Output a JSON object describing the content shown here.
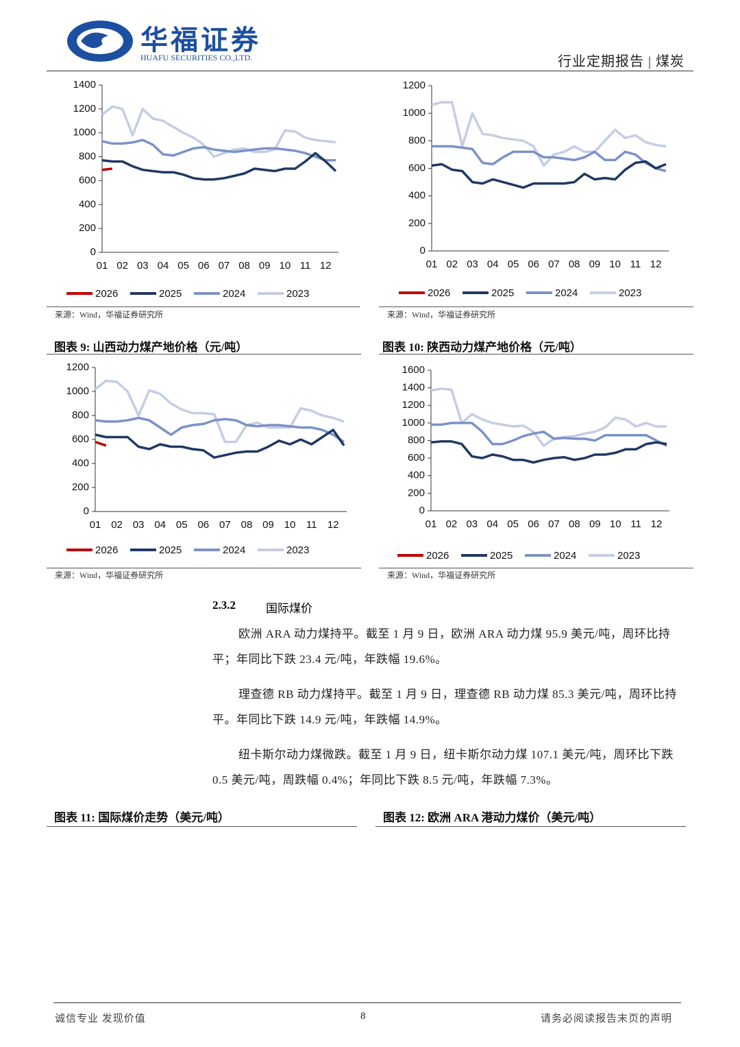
{
  "header": {
    "logo_cn": "华福证券",
    "logo_en": "HUAFU SECURITIES CO.,LTD.",
    "report_type": "行业定期报告 | 煤炭"
  },
  "chart_data": [
    {
      "type": "line",
      "source": "来源：Wind，华福证券研究所",
      "categories": [
        "01",
        null,
        "02",
        null,
        "03",
        null,
        "04",
        null,
        "05",
        null,
        "06",
        null,
        "07",
        null,
        "08",
        null,
        "09",
        null,
        "10",
        null,
        "11",
        null,
        "12",
        null
      ],
      "ylim": [
        0,
        1400
      ],
      "yticks": [
        0,
        200,
        400,
        600,
        800,
        1000,
        1200,
        1400
      ],
      "series": [
        {
          "name": "2026",
          "color": "#c00000",
          "values": [
            690,
            700,
            null,
            null,
            null,
            null,
            null,
            null,
            null,
            null,
            null,
            null,
            null,
            null,
            null,
            null,
            null,
            null,
            null,
            null,
            null,
            null,
            null,
            null
          ]
        },
        {
          "name": "2025",
          "color": "#1f3864",
          "values": [
            770,
            760,
            760,
            720,
            690,
            680,
            670,
            670,
            650,
            620,
            610,
            610,
            620,
            640,
            660,
            700,
            690,
            680,
            700,
            700,
            760,
            830,
            760,
            680
          ]
        },
        {
          "name": "2024",
          "color": "#7a92c8",
          "values": [
            930,
            910,
            910,
            920,
            940,
            900,
            820,
            810,
            840,
            870,
            880,
            860,
            850,
            840,
            850,
            860,
            870,
            870,
            860,
            850,
            830,
            800,
            770,
            770
          ]
        },
        {
          "name": "2023",
          "color": "#c4cce6",
          "values": [
            1150,
            1220,
            1200,
            980,
            1200,
            1120,
            1100,
            1050,
            1000,
            960,
            900,
            800,
            830,
            860,
            870,
            840,
            840,
            860,
            1020,
            1010,
            960,
            940,
            930,
            920
          ]
        }
      ]
    },
    {
      "type": "line",
      "source": "来源：Wind，华福证券研究所",
      "categories": [
        "01",
        null,
        "02",
        null,
        "03",
        null,
        "04",
        null,
        "05",
        null,
        "06",
        null,
        "07",
        null,
        "08",
        null,
        "09",
        null,
        "10",
        null,
        "11",
        null,
        "12",
        null
      ],
      "ylim": [
        0,
        1200
      ],
      "yticks": [
        0,
        200,
        400,
        600,
        800,
        1000,
        1200
      ],
      "series": [
        {
          "name": "2026",
          "color": "#c00000",
          "values": [
            null,
            null,
            null,
            null,
            null,
            null,
            null,
            null,
            null,
            null,
            null,
            null,
            null,
            null,
            null,
            null,
            null,
            null,
            null,
            null,
            null,
            null,
            null,
            null
          ]
        },
        {
          "name": "2025",
          "color": "#1f3864",
          "values": [
            620,
            630,
            590,
            580,
            500,
            490,
            520,
            500,
            480,
            460,
            490,
            490,
            490,
            490,
            500,
            560,
            520,
            530,
            520,
            590,
            640,
            650,
            600,
            630
          ]
        },
        {
          "name": "2024",
          "color": "#7a92c8",
          "values": [
            760,
            760,
            760,
            750,
            740,
            640,
            630,
            680,
            720,
            720,
            720,
            680,
            680,
            670,
            660,
            680,
            720,
            660,
            660,
            720,
            700,
            640,
            600,
            580
          ]
        },
        {
          "name": "2023",
          "color": "#c4cce6",
          "values": [
            1060,
            1080,
            1080,
            760,
            1000,
            850,
            840,
            820,
            810,
            800,
            760,
            620,
            700,
            720,
            760,
            720,
            720,
            800,
            880,
            820,
            840,
            790,
            770,
            760
          ]
        }
      ]
    },
    {
      "type": "line",
      "title": "图表 9:  山西动力煤产地价格（元/吨）",
      "source": "来源：Wind，华福证券研究所",
      "categories": [
        "01",
        null,
        "02",
        null,
        "03",
        null,
        "04",
        null,
        "05",
        null,
        "06",
        null,
        "07",
        null,
        "08",
        null,
        "09",
        null,
        "10",
        null,
        "11",
        null,
        "12",
        null
      ],
      "ylim": [
        0,
        1200
      ],
      "yticks": [
        0,
        200,
        400,
        600,
        800,
        1000,
        1200
      ],
      "series": [
        {
          "name": "2026",
          "color": "#c00000",
          "values": [
            580,
            550,
            null,
            null,
            null,
            null,
            null,
            null,
            null,
            null,
            null,
            null,
            null,
            null,
            null,
            null,
            null,
            null,
            null,
            null,
            null,
            null,
            null,
            null
          ]
        },
        {
          "name": "2025",
          "color": "#1f3864",
          "values": [
            640,
            620,
            620,
            620,
            540,
            520,
            560,
            540,
            540,
            520,
            510,
            450,
            470,
            490,
            500,
            500,
            540,
            590,
            560,
            600,
            560,
            620,
            680,
            550
          ]
        },
        {
          "name": "2024",
          "color": "#7a92c8",
          "values": [
            760,
            750,
            750,
            760,
            780,
            760,
            700,
            640,
            700,
            720,
            730,
            760,
            770,
            760,
            720,
            710,
            720,
            720,
            710,
            700,
            700,
            680,
            640,
            580
          ]
        },
        {
          "name": "2023",
          "color": "#c4cce6",
          "values": [
            1020,
            1090,
            1080,
            1000,
            800,
            1010,
            980,
            900,
            850,
            820,
            820,
            810,
            580,
            580,
            720,
            740,
            700,
            700,
            700,
            860,
            840,
            800,
            780,
            750
          ]
        }
      ]
    },
    {
      "type": "line",
      "title": "图表 10:  陕西动力煤产地价格（元/吨）",
      "source": "来源：Wind，华福证券研究所",
      "categories": [
        "01",
        null,
        "02",
        null,
        "03",
        null,
        "04",
        null,
        "05",
        null,
        "06",
        null,
        "07",
        null,
        "08",
        null,
        "09",
        null,
        "10",
        null,
        "11",
        null,
        "12",
        null
      ],
      "ylim": [
        0,
        1600
      ],
      "yticks": [
        0,
        200,
        400,
        600,
        800,
        1000,
        1200,
        1400,
        1600
      ],
      "series": [
        {
          "name": "2026",
          "color": "#c00000",
          "values": [
            null,
            null,
            null,
            null,
            null,
            null,
            null,
            null,
            null,
            null,
            null,
            null,
            null,
            null,
            null,
            null,
            null,
            null,
            null,
            null,
            null,
            null,
            null,
            null
          ]
        },
        {
          "name": "2025",
          "color": "#1f3864",
          "values": [
            780,
            790,
            790,
            760,
            620,
            600,
            640,
            620,
            580,
            580,
            550,
            580,
            600,
            610,
            580,
            600,
            640,
            640,
            660,
            700,
            700,
            760,
            780,
            760
          ]
        },
        {
          "name": "2024",
          "color": "#7a92c8",
          "values": [
            980,
            980,
            1000,
            1000,
            1000,
            900,
            760,
            760,
            800,
            850,
            880,
            900,
            820,
            830,
            820,
            820,
            800,
            860,
            860,
            860,
            860,
            860,
            800,
            740
          ]
        },
        {
          "name": "2023",
          "color": "#c4cce6",
          "values": [
            1370,
            1390,
            1380,
            1000,
            1100,
            1040,
            1000,
            980,
            960,
            970,
            900,
            740,
            820,
            840,
            850,
            880,
            900,
            950,
            1060,
            1040,
            960,
            1000,
            960,
            960
          ]
        }
      ]
    }
  ],
  "section": {
    "number": "2.3.2",
    "title": "国际煤价"
  },
  "paragraphs": [
    "欧洲 ARA 动力煤持平。截至 1 月 9 日，欧洲 ARA 动力煤 95.9 美元/吨，周环比持平；年同比下跌 23.4 元/吨，年跌幅 19.6%。",
    "理查德 RB 动力煤持平。截至 1 月 9 日，理查德 RB 动力煤 85.3 美元/吨，周环比持平。年同比下跌 14.9 元/吨，年跌幅 14.9%。",
    "纽卡斯尔动力煤微跌。截至 1 月 9 日，纽卡斯尔动力煤 107.1 美元/吨，周环比下跌 0.5 美元/吨，周跌幅 0.4%；年同比下跌 8.5 元/吨，年跌幅 7.3%。"
  ],
  "figure_titles": [
    "图表 11:  国际煤价走势（美元/吨）",
    "图表 12:  欧洲 ARA 港动力煤价（美元/吨）"
  ],
  "footer": {
    "left": "诚信专业  发现价值",
    "page": "8",
    "right": "请务必阅读报告末页的声明"
  }
}
